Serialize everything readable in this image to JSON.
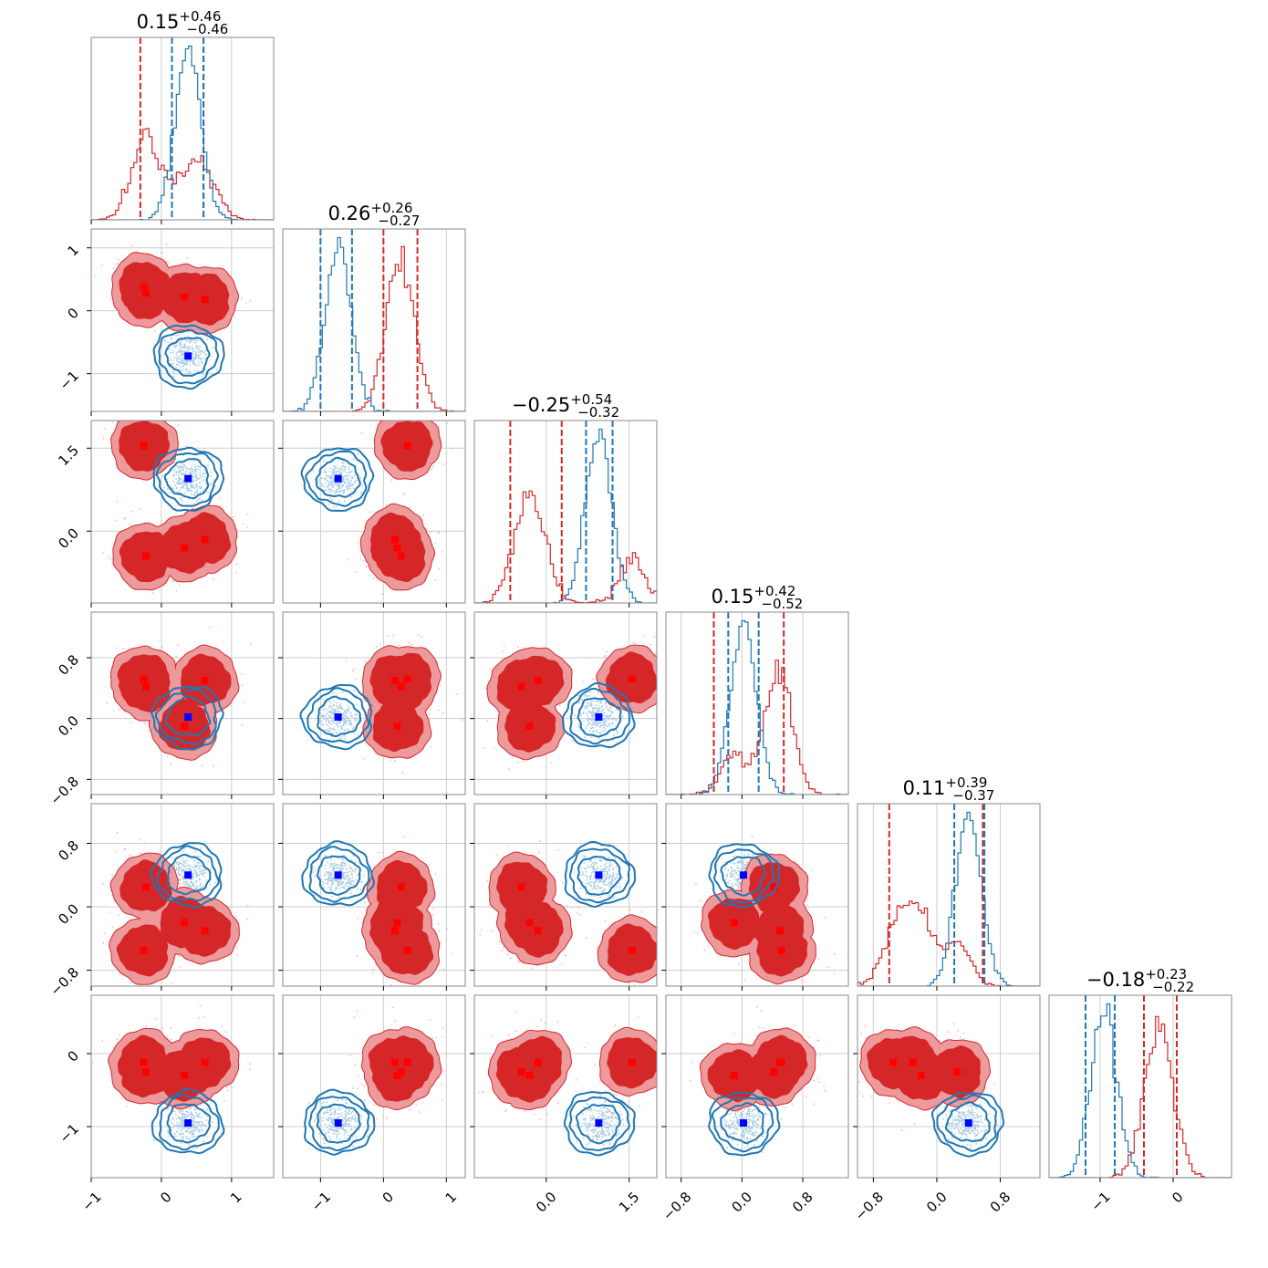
{
  "chart_data": {
    "type": "corner",
    "n_params": 6,
    "colors": {
      "red": "#d62728",
      "red_fill_outer": "#ec9a9b",
      "red_fill_inner": "#d62728",
      "blue": "#1f77b4",
      "marker_red": "#ff0000",
      "marker_blue": "#0000ff",
      "grid": "#cccccc"
    },
    "titles": [
      {
        "median": "0.15",
        "plus": "+0.46",
        "minus": "−0.46"
      },
      {
        "median": "0.26",
        "plus": "+0.26",
        "minus": "−0.27"
      },
      {
        "median": "−0.25",
        "plus": "+0.54",
        "minus": "−0.32"
      },
      {
        "median": "0.15",
        "plus": "+0.42",
        "minus": "−0.52"
      },
      {
        "median": "0.11",
        "plus": "+0.39",
        "minus": "−0.37"
      },
      {
        "median": "−0.18",
        "plus": "+0.23",
        "minus": "−0.22"
      }
    ],
    "axes": [
      {
        "range": [
          -1.0,
          1.6
        ],
        "ticks": [
          -1,
          0,
          1
        ],
        "tick_labels": [
          "−1",
          "0",
          "1"
        ]
      },
      {
        "range": [
          -1.6,
          1.3
        ],
        "ticks": [
          -1,
          0,
          1
        ],
        "tick_labels": [
          "−1",
          "0",
          "1"
        ]
      },
      {
        "range": [
          -1.3,
          2.0
        ],
        "ticks": [
          0.0,
          1.5
        ],
        "tick_labels": [
          "0.0",
          "1.5"
        ]
      },
      {
        "range": [
          -1.0,
          1.4
        ],
        "ticks": [
          -0.8,
          0.0,
          0.8
        ],
        "tick_labels": [
          "−0.8",
          "0.0",
          "0.8"
        ]
      },
      {
        "range": [
          -1.0,
          1.3
        ],
        "ticks": [
          -0.8,
          0.0,
          0.8
        ],
        "tick_labels": [
          "−0.8",
          "0.0",
          "0.8"
        ]
      },
      {
        "range": [
          -1.7,
          0.8
        ],
        "ticks": [
          -1,
          0
        ],
        "tick_labels": [
          "−1",
          "0"
        ]
      }
    ],
    "red_modes": [
      [
        -0.25,
        0.38,
        1.55,
        0.52,
        -0.55,
        -0.12
      ],
      [
        -0.22,
        0.28,
        -0.45,
        0.42,
        0.25,
        -0.25
      ],
      [
        0.33,
        0.22,
        -0.3,
        -0.1,
        -0.2,
        -0.3
      ],
      [
        0.62,
        0.18,
        -0.15,
        0.5,
        -0.3,
        -0.12
      ]
    ],
    "blue_center": [
      0.38,
      -0.72,
      0.95,
      0.02,
      0.4,
      -0.95
    ],
    "red_quantiles": [
      [
        -0.3,
        0.6
      ],
      [
        0.0,
        0.54
      ],
      [
        -0.65,
        0.28
      ],
      [
        -0.37,
        0.55
      ],
      [
        -0.6,
        0.58
      ],
      [
        -0.4,
        0.05
      ]
    ],
    "blue_quantiles": [
      [
        0.15,
        0.6
      ],
      [
        -1.0,
        -0.5
      ],
      [
        0.72,
        1.2
      ],
      [
        -0.18,
        0.22
      ],
      [
        0.22,
        0.6
      ],
      [
        -1.2,
        -0.8
      ]
    ]
  }
}
